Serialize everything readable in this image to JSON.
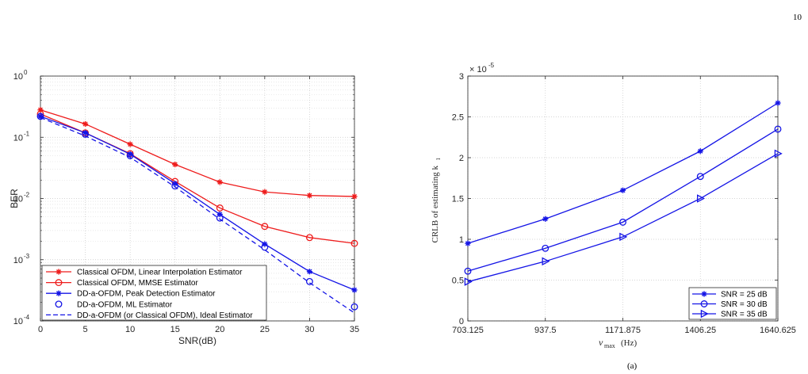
{
  "page_number": "10",
  "caption": "(a)",
  "chart_data": [
    {
      "type": "line",
      "y_scale": "log",
      "xlabel": "SNR(dB)",
      "ylabel": "BER",
      "xlim": [
        0,
        35
      ],
      "ylim": [
        0.0001,
        1
      ],
      "x_ticks": [
        "0",
        "5",
        "10",
        "15",
        "20",
        "25",
        "30",
        "35"
      ],
      "y_tick_bases": [
        "10",
        "10",
        "10",
        "10",
        "10"
      ],
      "y_tick_exps": [
        "-4",
        "-3",
        "-2",
        "-1",
        "0"
      ],
      "grid": true,
      "legend_position": "bottom-left",
      "x": [
        0,
        5,
        10,
        15,
        20,
        25,
        30,
        35
      ],
      "series": [
        {
          "name": "Classical OFDM, Linear Interpolation Estimator",
          "color": "#ee1c1c",
          "marker": "star",
          "dashed": false,
          "values": [
            0.28,
            0.165,
            0.077,
            0.036,
            0.0185,
            0.0128,
            0.0112,
            0.0108
          ]
        },
        {
          "name": "Classical OFDM, MMSE Estimator",
          "color": "#ee1c1c",
          "marker": "circle",
          "dashed": false,
          "values": [
            0.24,
            0.118,
            0.054,
            0.019,
            0.007,
            0.0035,
            0.0023,
            0.00185
          ]
        },
        {
          "name": "DD-a-OFDM, Peak Detection Estimator",
          "color": "#1414e6",
          "marker": "star",
          "dashed": false,
          "values": [
            0.22,
            0.118,
            0.053,
            0.0175,
            0.0055,
            0.0018,
            0.00064,
            0.00032
          ]
        },
        {
          "name": "DD-a-OFDM, ML Estimator",
          "color": "#1414e6",
          "marker": "circle",
          "dashed": false,
          "no_line": true,
          "values": [
            0.22,
            0.112,
            0.05,
            0.016,
            0.0048,
            0.0016,
            0.00044,
            0.00017
          ]
        },
        {
          "name": "DD-a-OFDM (or Classical OFDM), Ideal Estimator",
          "color": "#1414e6",
          "marker": "none",
          "dashed": true,
          "values": [
            0.21,
            0.105,
            0.047,
            0.0155,
            0.0046,
            0.00145,
            0.00042,
            0.000135
          ]
        }
      ]
    },
    {
      "type": "line",
      "y_scale": "linear",
      "xlabel_main": "ν",
      "xlabel_sub": "max",
      "xlabel_unit": "(Hz)",
      "ylabel_main": "CRLB of estimating k",
      "ylabel_sub": "1",
      "y_exponent_base": "× 10",
      "y_exponent": "-5",
      "xlim": [
        703.125,
        1640.625
      ],
      "ylim": [
        0,
        3
      ],
      "x_ticks": [
        "703.125",
        "937.5",
        "1171.875",
        "1406.25",
        "1640.625"
      ],
      "y_ticks": [
        "0",
        "0.5",
        "1",
        "1.5",
        "2",
        "2.5",
        "3"
      ],
      "grid": true,
      "legend_position": "bottom-right",
      "x": [
        703.125,
        937.5,
        1171.875,
        1406.25,
        1640.625
      ],
      "series": [
        {
          "name": "SNR = 25 dB",
          "color": "#1414e6",
          "marker": "star",
          "values": [
            0.95,
            1.25,
            1.6,
            2.08,
            2.67
          ]
        },
        {
          "name": "SNR = 30 dB",
          "color": "#1414e6",
          "marker": "circle",
          "values": [
            0.61,
            0.89,
            1.21,
            1.77,
            2.35
          ]
        },
        {
          "name": "SNR = 35 dB",
          "color": "#1414e6",
          "marker": "triangle-right",
          "values": [
            0.48,
            0.73,
            1.03,
            1.5,
            2.05
          ]
        }
      ]
    }
  ]
}
